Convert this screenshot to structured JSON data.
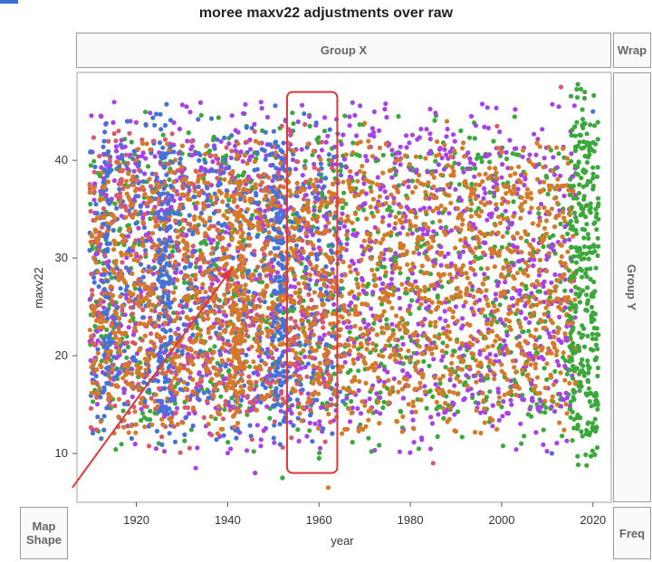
{
  "window": {
    "title": "moree maxv22 adjustments over raw"
  },
  "drop_zones": {
    "group_x": "Group X",
    "wrap": "Wrap",
    "group_y": "Group Y",
    "map_shape_line1": "Map",
    "map_shape_line2": "Shape",
    "freq": "Freq"
  },
  "chart_data": {
    "type": "scatter",
    "title": "moree maxv22 adjustments over raw",
    "xlabel": "year",
    "ylabel": "maxv22",
    "xlim": [
      1907,
      2024
    ],
    "ylim": [
      5,
      49
    ],
    "xticks": [
      1920,
      1940,
      1960,
      1980,
      2000,
      2020
    ],
    "yticks": [
      10,
      20,
      30,
      40
    ],
    "grid": false,
    "legend": "none",
    "series": [
      {
        "color": "#4472d8",
        "x_range": [
          1910,
          1965
        ],
        "y_band": [
          13,
          44
        ]
      },
      {
        "color": "#d85a6a",
        "x_range": [
          1910,
          1963
        ],
        "y_band": [
          12,
          43
        ]
      },
      {
        "color": "#a742e6",
        "x_range": [
          1910,
          2016
        ],
        "y_band": [
          10,
          47
        ]
      },
      {
        "color": "#3ba83b",
        "x_range": [
          1910,
          2021
        ],
        "y_band": [
          9,
          46
        ]
      },
      {
        "color": "#d47a28",
        "x_range": [
          1910,
          2016
        ],
        "y_band": [
          9,
          45
        ]
      }
    ],
    "annotations": [
      {
        "type": "arrow",
        "color": "#e0383a",
        "from": [
          1906,
          6.5
        ],
        "to": [
          1941,
          29
        ]
      },
      {
        "type": "box",
        "color": "#e0383a",
        "x_range": [
          1953,
          1964
        ],
        "y_range": [
          8,
          47
        ]
      }
    ]
  },
  "colors": {
    "blue": "#4472d8",
    "red": "#d85a6a",
    "purple": "#a742e6",
    "green": "#3ba83b",
    "orange": "#d47a28",
    "annotation": "#e0383a"
  }
}
